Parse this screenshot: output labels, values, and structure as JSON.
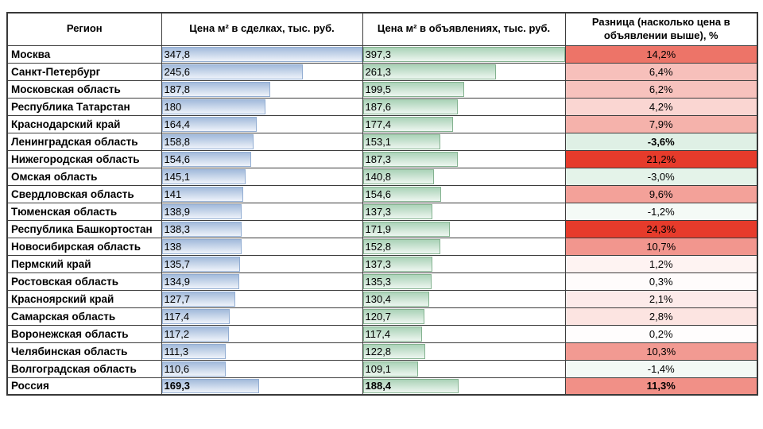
{
  "accent_colors": {
    "bar_blue_dark": "#a3bbdb",
    "bar_blue_light": "#eef3fa",
    "bar_blue_border": "#92add2",
    "bar_green_dark": "#abd3b8",
    "bar_green_light": "#edf6f0",
    "bar_green_border": "#84b290",
    "diff_red_max": "#e63b2b",
    "diff_green_min": "#dff0e5"
  },
  "diff_scale": {
    "red_limit": 20,
    "green_limit": -3.6
  },
  "table": {
    "headers": {
      "region": "Регион",
      "deal": "Цена м² в сделках, тыс. руб.",
      "list": "Цена м² в объявлениях, тыс. руб.",
      "diff": "Разница (насколько цена в объявлении выше), %"
    },
    "rows": [
      {
        "region": "Москва",
        "deal": "347,8",
        "list": "397,3",
        "diff": "14,2%",
        "diff_value": 14.2,
        "bold": false,
        "diff_bold": false
      },
      {
        "region": "Санкт-Петербург",
        "deal": "245,6",
        "list": "261,3",
        "diff": "6,4%",
        "diff_value": 6.4,
        "bold": false,
        "diff_bold": false
      },
      {
        "region": "Московская область",
        "deal": "187,8",
        "list": "199,5",
        "diff": "6,2%",
        "diff_value": 6.2,
        "bold": false,
        "diff_bold": false
      },
      {
        "region": "Республика Татарстан",
        "deal": "180",
        "list": "187,6",
        "diff": "4,2%",
        "diff_value": 4.2,
        "bold": false,
        "diff_bold": false
      },
      {
        "region": "Краснодарский край",
        "deal": "164,4",
        "list": "177,4",
        "diff": "7,9%",
        "diff_value": 7.9,
        "bold": false,
        "diff_bold": false
      },
      {
        "region": "Ленинградская область",
        "deal": "158,8",
        "list": "153,1",
        "diff": "-3,6%",
        "diff_value": -3.6,
        "bold": false,
        "diff_bold": true
      },
      {
        "region": "Нижегородская область",
        "deal": "154,6",
        "list": "187,3",
        "diff": "21,2%",
        "diff_value": 21.2,
        "bold": false,
        "diff_bold": false
      },
      {
        "region": "Омская область",
        "deal": "145,1",
        "list": "140,8",
        "diff": "-3,0%",
        "diff_value": -3.0,
        "bold": false,
        "diff_bold": false
      },
      {
        "region": "Свердловская область",
        "deal": "141",
        "list": "154,6",
        "diff": "9,6%",
        "diff_value": 9.6,
        "bold": false,
        "diff_bold": false
      },
      {
        "region": "Тюменская область",
        "deal": "138,9",
        "list": "137,3",
        "diff": "-1,2%",
        "diff_value": -1.2,
        "bold": false,
        "diff_bold": false
      },
      {
        "region": "Республика Башкортостан",
        "deal": "138,3",
        "list": "171,9",
        "diff": "24,3%",
        "diff_value": 24.3,
        "bold": false,
        "diff_bold": false
      },
      {
        "region": "Новосибирская область",
        "deal": "138",
        "list": "152,8",
        "diff": "10,7%",
        "diff_value": 10.7,
        "bold": false,
        "diff_bold": false
      },
      {
        "region": "Пермский край",
        "deal": "135,7",
        "list": "137,3",
        "diff": "1,2%",
        "diff_value": 1.2,
        "bold": false,
        "diff_bold": false
      },
      {
        "region": "Ростовская область",
        "deal": "134,9",
        "list": "135,3",
        "diff": "0,3%",
        "diff_value": 0.3,
        "bold": false,
        "diff_bold": false
      },
      {
        "region": "Красноярский край",
        "deal": "127,7",
        "list": "130,4",
        "diff": "2,1%",
        "diff_value": 2.1,
        "bold": false,
        "diff_bold": false
      },
      {
        "region": "Самарская область",
        "deal": "117,4",
        "list": "120,7",
        "diff": "2,8%",
        "diff_value": 2.8,
        "bold": false,
        "diff_bold": false
      },
      {
        "region": "Воронежская область",
        "deal": "117,2",
        "list": "117,4",
        "diff": "0,2%",
        "diff_value": 0.2,
        "bold": false,
        "diff_bold": false
      },
      {
        "region": "Челябинская область",
        "deal": "111,3",
        "list": "122,8",
        "diff": "10,3%",
        "diff_value": 10.3,
        "bold": false,
        "diff_bold": false
      },
      {
        "region": "Волгоградская область",
        "deal": "110,6",
        "list": "109,1",
        "diff": "-1,4%",
        "diff_value": -1.4,
        "bold": false,
        "diff_bold": false
      },
      {
        "region": "Россия",
        "deal": "169,3",
        "list": "188,4",
        "diff": "11,3%",
        "diff_value": 11.3,
        "bold": true,
        "diff_bold": true
      }
    ]
  },
  "chart_data": {
    "type": "table",
    "title": "",
    "categories": [
      "Москва",
      "Санкт-Петербург",
      "Московская область",
      "Республика Татарстан",
      "Краснодарский край",
      "Ленинградская область",
      "Нижегородская область",
      "Омская область",
      "Свердловская область",
      "Тюменская область",
      "Республика Башкортостан",
      "Новосибирская область",
      "Пермский край",
      "Ростовская область",
      "Красноярский край",
      "Самарская область",
      "Воронежская область",
      "Челябинская область",
      "Волгоградская область",
      "Россия"
    ],
    "series": [
      {
        "name": "Цена м² в сделках, тыс. руб.",
        "values": [
          347.8,
          245.6,
          187.8,
          180,
          164.4,
          158.8,
          154.6,
          145.1,
          141,
          138.9,
          138.3,
          138,
          135.7,
          134.9,
          127.7,
          117.4,
          117.2,
          111.3,
          110.6,
          169.3
        ]
      },
      {
        "name": "Цена м² в объявлениях, тыс. руб.",
        "values": [
          397.3,
          261.3,
          199.5,
          187.6,
          177.4,
          153.1,
          187.3,
          140.8,
          154.6,
          137.3,
          171.9,
          152.8,
          137.3,
          135.3,
          130.4,
          120.7,
          117.4,
          122.8,
          109.1,
          188.4
        ]
      },
      {
        "name": "Разница (насколько цена в объявлении выше), %",
        "values": [
          14.2,
          6.4,
          6.2,
          4.2,
          7.9,
          -3.6,
          21.2,
          -3.0,
          9.6,
          -1.2,
          24.3,
          10.7,
          1.2,
          0.3,
          2.1,
          2.8,
          0.2,
          10.3,
          -1.4,
          11.3
        ]
      }
    ],
    "layout": {
      "deal_column_data_bars": "blue gradient bars scaled 0..347.8",
      "list_column_data_bars": "green gradient bars scaled 0..397.3",
      "diff_column_color_scale": "white-to-red for positive values, white-to-light-green for negative values",
      "grid": true,
      "legend": false
    }
  }
}
